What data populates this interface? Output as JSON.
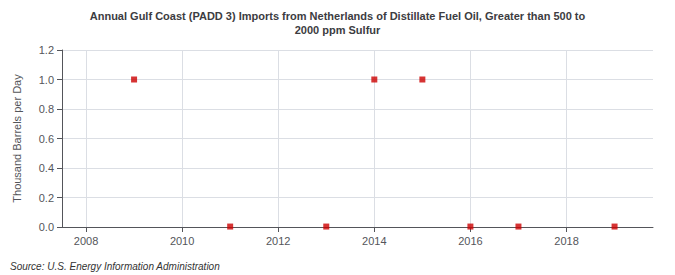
{
  "chart_data": {
    "type": "scatter",
    "title": "Annual Gulf Coast (PADD 3) Imports from Netherlands of Distillate Fuel Oil, Greater than 500 to\n2000 ppm Sulfur",
    "ylabel": "Thousand Barrels per Day",
    "annotations": [
      "Source: U.S. Energy Information Administration"
    ],
    "x": [
      2009,
      2011,
      2013,
      2014,
      2015,
      2016,
      2017,
      2019
    ],
    "values": [
      1.0,
      0.003,
      0.003,
      1.0,
      1.0,
      0.003,
      0.003,
      0.003
    ],
    "color": "#cc0000",
    "marker": "square",
    "xlim": [
      2007.5,
      2019.8
    ],
    "ylim": [
      0.0,
      1.2
    ],
    "xticks": [
      2008,
      2010,
      2012,
      2014,
      2016,
      2018
    ],
    "yticks": [
      {
        "value": 0,
        "label": "0.0"
      },
      0.2,
      0.4,
      0.6,
      0.8,
      {
        "value": 1,
        "label": "1.0"
      },
      1.2
    ],
    "grid": true
  }
}
